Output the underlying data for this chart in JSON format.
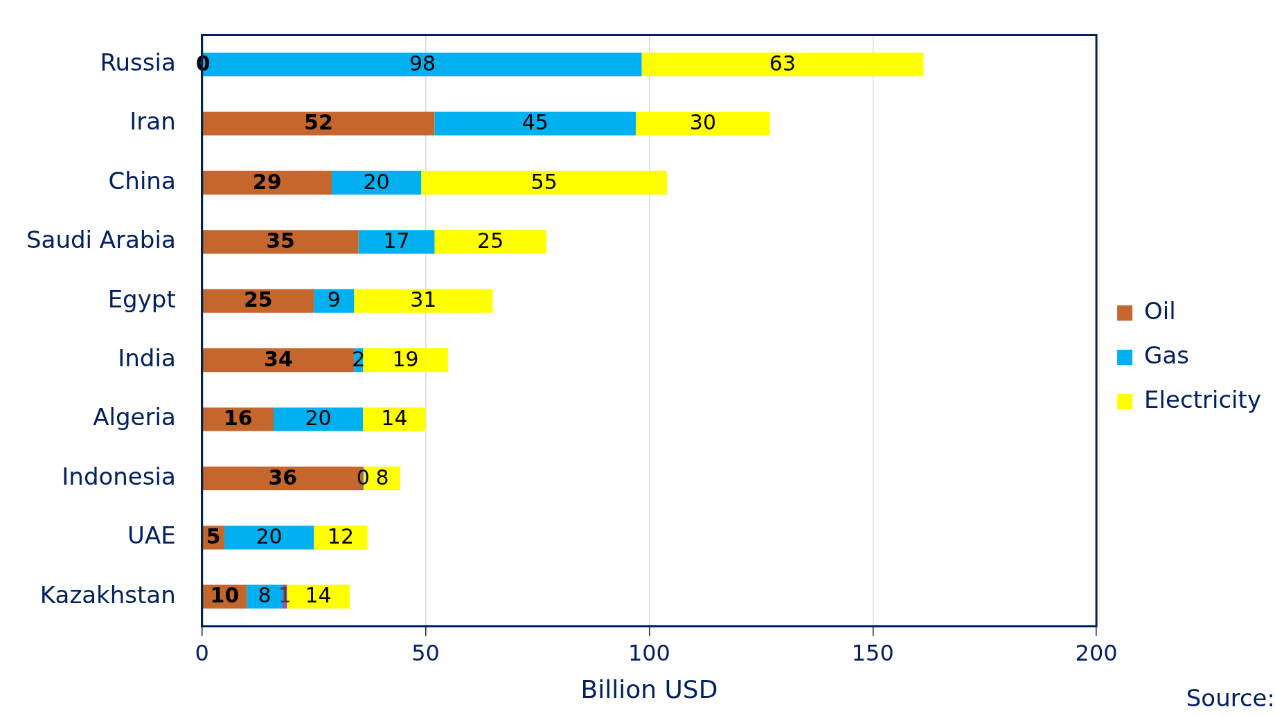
{
  "chart_data": {
    "type": "bar",
    "orientation": "horizontal",
    "stacked": true,
    "xlabel": "Billion USD",
    "categories": [
      "Russia",
      "Iran",
      "China",
      "Saudi Arabia",
      "Egypt",
      "India",
      "Algeria",
      "Indonesia",
      "UAE",
      "Kazakhstan"
    ],
    "series": [
      {
        "name": "Oil",
        "color": "#c5662c",
        "values": [
          0,
          52,
          29,
          35,
          25,
          34,
          16,
          36,
          5,
          10
        ]
      },
      {
        "name": "Gas",
        "color": "#00b0f0",
        "values": [
          98,
          45,
          20,
          17,
          9,
          2,
          20,
          0,
          20,
          8
        ]
      },
      {
        "color": "#9b4fb0",
        "values": [
          null,
          null,
          null,
          null,
          null,
          null,
          null,
          null,
          null,
          1
        ]
      },
      {
        "name": "Electricity",
        "color": "#ffff00",
        "values": [
          63,
          30,
          55,
          25,
          31,
          19,
          14,
          8,
          12,
          14
        ]
      }
    ],
    "xlim": [
      0,
      200
    ],
    "xticks": [
      0,
      50,
      100,
      150,
      200
    ],
    "grid": "x",
    "legend": "right",
    "data_labels": true,
    "annotations": [
      "Source:"
    ]
  }
}
